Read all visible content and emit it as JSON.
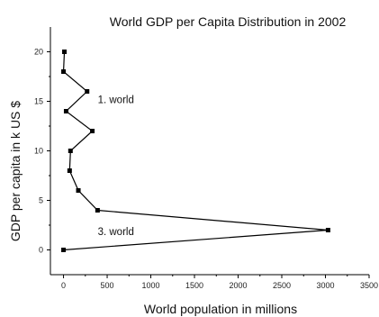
{
  "chart_data": {
    "type": "line",
    "title": "World GDP per Capita Distribution in 2002",
    "xlabel": "World population in millions",
    "ylabel": "GDP per capita in k US $",
    "xlim": [
      -150,
      3500
    ],
    "ylim": [
      -2.5,
      22.5
    ],
    "xticks": [
      0,
      500,
      1000,
      1500,
      2000,
      2500,
      3000,
      3500
    ],
    "yticks": [
      0,
      5,
      10,
      15,
      20
    ],
    "grid": false,
    "series": [
      {
        "marker": "square",
        "points": [
          {
            "x": 0,
            "y": 0
          },
          {
            "x": 3030,
            "y": 2
          },
          {
            "x": 390,
            "y": 4
          },
          {
            "x": 170,
            "y": 6
          },
          {
            "x": 70,
            "y": 8
          },
          {
            "x": 80,
            "y": 10
          },
          {
            "x": 330,
            "y": 12
          },
          {
            "x": 30,
            "y": 14
          },
          {
            "x": 270,
            "y": 16
          },
          {
            "x": 0,
            "y": 18
          },
          {
            "x": 10,
            "y": 20
          }
        ]
      }
    ],
    "annotations": [
      {
        "text": "1. world",
        "x": 600,
        "y": 14.8
      },
      {
        "text": "3. world",
        "x": 600,
        "y": 1.5
      }
    ]
  }
}
